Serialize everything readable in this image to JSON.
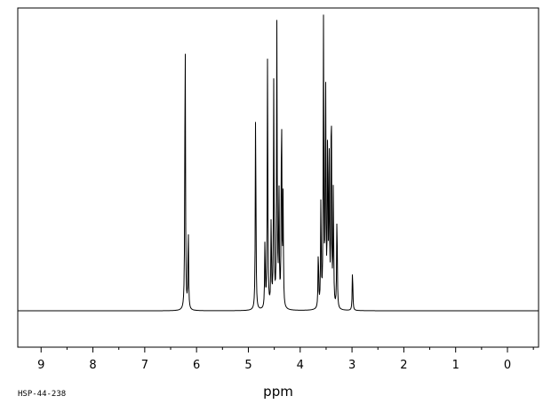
{
  "chart_data": {
    "type": "line",
    "xlabel": "ppm",
    "sample_id": "HSP-44-238",
    "x_reversed": true,
    "xlim": [
      9.45,
      -0.6
    ],
    "ylim": [
      -0.12,
      1.0
    ],
    "grid": false,
    "x_ticks": [
      9,
      8,
      7,
      6,
      5,
      4,
      3,
      2,
      1,
      0
    ],
    "x_tick_labels": [
      "9",
      "8",
      "7",
      "6",
      "5",
      "4",
      "3",
      "2",
      "1",
      "0"
    ],
    "peaks": [
      {
        "ppm": 6.22,
        "intensity": 0.98
      },
      {
        "ppm": 6.16,
        "intensity": 0.28
      },
      {
        "ppm": 4.86,
        "intensity": 0.69
      },
      {
        "ppm": 4.68,
        "intensity": 0.23
      },
      {
        "ppm": 4.63,
        "intensity": 0.83
      },
      {
        "ppm": 4.56,
        "intensity": 0.3
      },
      {
        "ppm": 4.51,
        "intensity": 0.75
      },
      {
        "ppm": 4.45,
        "intensity": 0.94
      },
      {
        "ppm": 4.41,
        "intensity": 0.4
      },
      {
        "ppm": 4.36,
        "intensity": 0.71
      },
      {
        "ppm": 4.33,
        "intensity": 0.36
      },
      {
        "ppm": 3.65,
        "intensity": 0.2
      },
      {
        "ppm": 3.6,
        "intensity": 0.36
      },
      {
        "ppm": 3.55,
        "intensity": 0.94
      },
      {
        "ppm": 3.51,
        "intensity": 0.79
      },
      {
        "ppm": 3.47,
        "intensity": 0.6
      },
      {
        "ppm": 3.44,
        "intensity": 0.48
      },
      {
        "ppm": 3.4,
        "intensity": 0.76
      },
      {
        "ppm": 3.36,
        "intensity": 0.4
      },
      {
        "ppm": 3.29,
        "intensity": 0.33
      },
      {
        "ppm": 2.99,
        "intensity": 0.14
      }
    ]
  }
}
